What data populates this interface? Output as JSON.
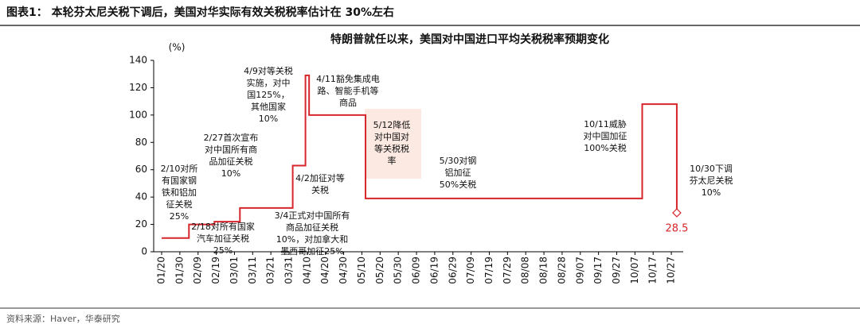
{
  "header": "图表1：  本轮芬太尼关税下调后，美国对华实际有效关税税率估计在 30%左右",
  "source": "资料来源：Haver，华泰研究",
  "chart_data": {
    "type": "step-line",
    "title": "特朗普就任以来，美国对中国进口平均关税税率预期变化",
    "y_label": "(%)",
    "categories": [
      "01/20",
      "01/30",
      "02/09",
      "02/19",
      "03/01",
      "03/11",
      "03/21",
      "03/31",
      "04/10",
      "04/20",
      "04/30",
      "05/10",
      "05/20",
      "05/30",
      "06/09",
      "06/19",
      "06/29",
      "07/09",
      "07/19",
      "07/29",
      "08/08",
      "08/18",
      "08/28",
      "09/07",
      "09/17",
      "09/27",
      "10/07",
      "10/17",
      "10/27"
    ],
    "x": [
      "01/20",
      "02/04",
      "02/18",
      "03/04",
      "04/02",
      "04/09",
      "04/11",
      "05/12",
      "10/11",
      "10/30"
    ],
    "series": [
      {
        "name": "美国对中国进口平均关税税率",
        "color": "#d7262b",
        "values": [
          10,
          20,
          22,
          32,
          63,
          129,
          100,
          39,
          108,
          28.5
        ]
      }
    ],
    "ylim": [
      0,
      140
    ],
    "yticks": [
      0,
      20,
      40,
      60,
      80,
      100,
      120,
      140
    ],
    "annotations": [
      [
        "2/10对所",
        "有国家钢",
        "铁和铝加",
        "征关税",
        "25%"
      ],
      [
        "2/27首次宣布",
        "对中国所有商",
        "品加征关税",
        "10%"
      ],
      [
        "2/18对所有国家",
        "汽车加征关税",
        "25%"
      ],
      [
        "3/4正式对中国所有",
        "商品加征关税",
        "10%，对加拿大和",
        "墨西哥加征25%"
      ],
      [
        "4/9对等关税",
        "实施，对中",
        "国125%，",
        "其他国家",
        "10%"
      ],
      [
        "4/2加征对等",
        "关税"
      ],
      [
        "4/11豁免集成电",
        "路、智能手机等",
        "商品"
      ],
      [
        "5/12降低",
        "对中国对",
        "等关税税",
        "率"
      ],
      [
        "5/30对钢",
        "铝加征",
        "50%关税"
      ],
      [
        "10/11威胁",
        "对中国加征",
        "100%关税"
      ],
      [
        "10/30下调",
        "芬太尼关税",
        "10%"
      ]
    ]
  }
}
